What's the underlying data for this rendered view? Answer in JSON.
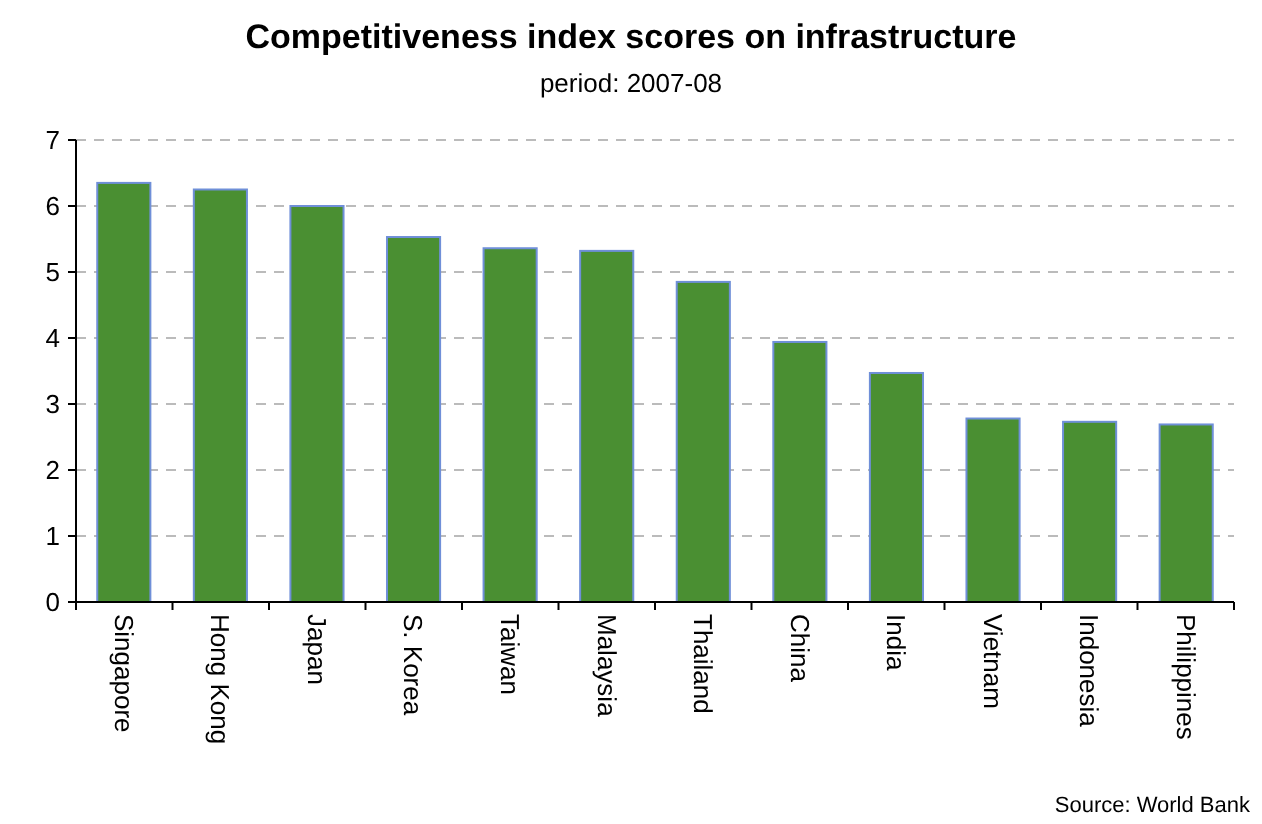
{
  "chart_data": {
    "type": "bar",
    "title": "Competitiveness index scores on infrastructure",
    "subtitle": "period: 2007-08",
    "categories": [
      "Singapore",
      "Hong Kong",
      "Japan",
      "S. Korea",
      "Taiwan",
      "Malaysia",
      "Thailand",
      "China",
      "India",
      "Vietnam",
      "Indonesia",
      "Philippines"
    ],
    "values": [
      6.35,
      6.25,
      6.0,
      5.53,
      5.36,
      5.32,
      4.85,
      3.94,
      3.47,
      2.78,
      2.73,
      2.69
    ],
    "color": "#4a8f32",
    "ylim": [
      0,
      7
    ],
    "yticks": [
      0,
      1,
      2,
      3,
      4,
      5,
      6,
      7
    ],
    "grid": "y",
    "annotations": [
      "Source: World Bank"
    ]
  }
}
